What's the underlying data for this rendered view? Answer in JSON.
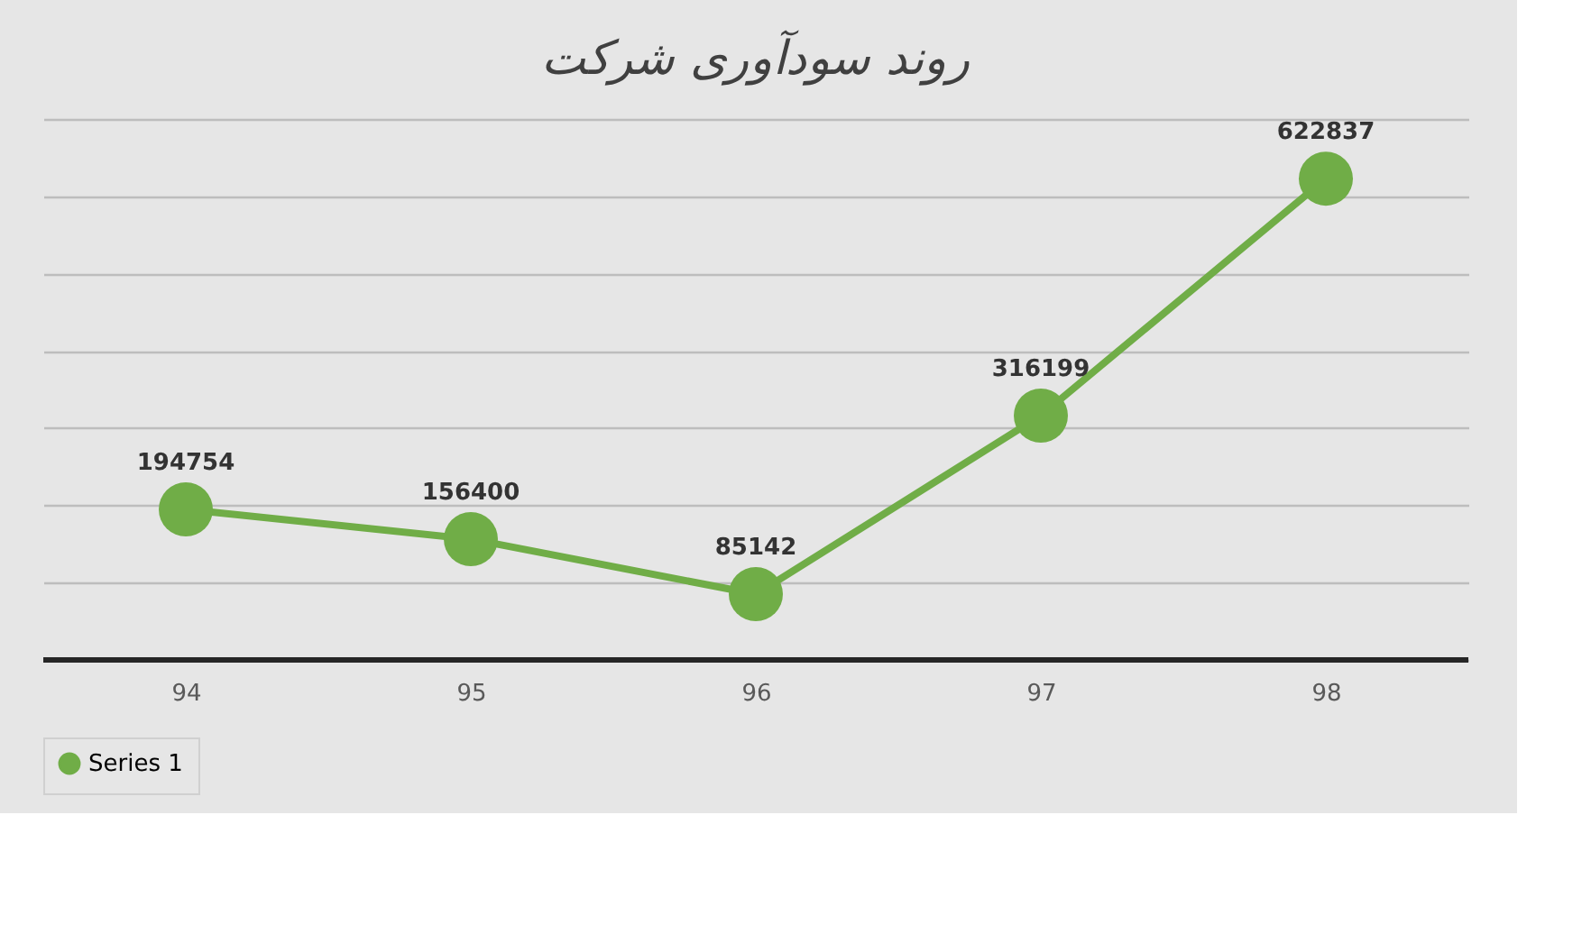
{
  "chart_data": {
    "type": "line",
    "title": "روند سودآوری شرکت",
    "categories": [
      "94",
      "95",
      "96",
      "97",
      "98"
    ],
    "series": [
      {
        "name": "Series 1",
        "color": "#70ad47",
        "values": [
          194754,
          156400,
          85142,
          316199,
          622837
        ]
      }
    ],
    "ylim": [
      0,
      700000
    ],
    "yticks": [
      {
        "value": 0,
        "label": null
      },
      {
        "value": 100000,
        "label": null
      },
      {
        "value": 200000,
        "label": null
      },
      {
        "value": 300000,
        "label": null
      },
      {
        "value": 400000,
        "label": null
      },
      {
        "value": 500000,
        "label": null
      },
      {
        "value": 600000,
        "label": null
      },
      {
        "value": 700000,
        "label": null
      }
    ],
    "tick_labels": "x",
    "grid": "y",
    "legend": "bottom",
    "marker": "circle",
    "line_style": "solid",
    "data_labels": true
  }
}
